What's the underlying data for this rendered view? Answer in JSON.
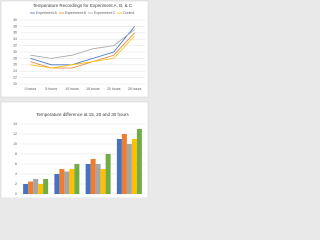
{
  "chart_data": [
    {
      "type": "line",
      "title": "Temperature Recordings for Experiment A, B, & C",
      "categories": [
        "0 hours",
        "5 hours",
        "10 hours",
        "15 hours",
        "20 hours",
        "25 hours"
      ],
      "series": [
        {
          "name": "Experiment A",
          "color": "#4472c4",
          "values": [
            28,
            26,
            26,
            28,
            30,
            38
          ]
        },
        {
          "name": "Experiment B",
          "color": "#ed7d31",
          "values": [
            27,
            25,
            25,
            27,
            29,
            36
          ]
        },
        {
          "name": "Experiment C",
          "color": "#a5a5a5",
          "values": [
            29,
            28,
            29,
            31,
            32,
            37
          ]
        },
        {
          "name": "Control",
          "color": "#ffc000",
          "values": [
            26,
            25,
            26,
            27,
            28,
            35
          ]
        }
      ],
      "ylim": [
        20,
        40
      ],
      "yticks": [
        20,
        22,
        24,
        26,
        28,
        30,
        32,
        34,
        36,
        38,
        40
      ],
      "grid": true
    },
    {
      "type": "bar",
      "title": "Temperature difference at 15, 20 and 30 hours",
      "categories": [
        null,
        null,
        null,
        null
      ],
      "series": [
        {
          "color": "#4472c4",
          "values": [
            2,
            4,
            6,
            11
          ]
        },
        {
          "color": "#ed7d31",
          "values": [
            2.5,
            5,
            7,
            12
          ]
        },
        {
          "color": "#a5a5a5",
          "values": [
            3,
            4.5,
            6,
            10
          ]
        },
        {
          "color": "#ffc000",
          "values": [
            2,
            5,
            5,
            11
          ]
        },
        {
          "color": "#70ad47",
          "values": [
            3,
            6,
            8,
            13
          ]
        }
      ],
      "ylim": [
        0,
        14
      ],
      "yticks": [
        0,
        2,
        4,
        6,
        8,
        10,
        12,
        14
      ],
      "grid": true
    }
  ]
}
